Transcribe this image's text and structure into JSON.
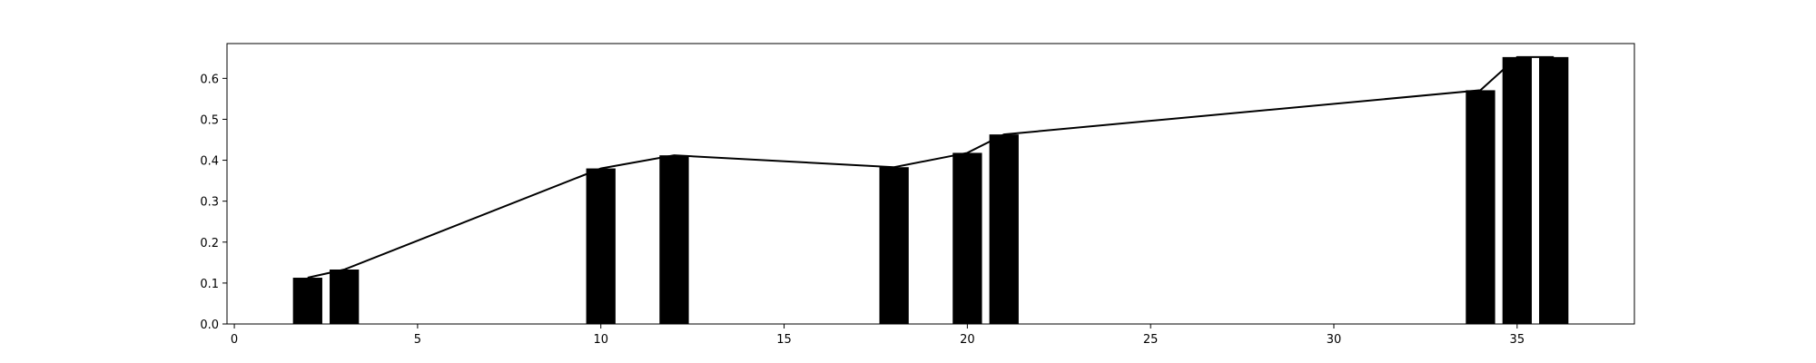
{
  "chart_data": {
    "type": "bar",
    "title": "",
    "xlabel": "",
    "ylabel": "",
    "xlim": [
      -0.2,
      38.2
    ],
    "ylim": [
      0,
      0.685
    ],
    "grid": false,
    "legend": "none",
    "bar_width": 0.8,
    "bar_color": "#000000",
    "line_color": "#000000",
    "x_ticks": [
      0,
      5,
      10,
      15,
      20,
      25,
      30,
      35
    ],
    "x_tick_labels": [
      "0",
      "5",
      "10",
      "15",
      "20",
      "25",
      "30",
      "35"
    ],
    "y_ticks": [
      0.0,
      0.1,
      0.2,
      0.3,
      0.4,
      0.5,
      0.6
    ],
    "y_tick_labels": [
      "0.0",
      "0.1",
      "0.2",
      "0.3",
      "0.4",
      "0.5",
      "0.6"
    ],
    "x": [
      2,
      3,
      10,
      12,
      18,
      20,
      21,
      34,
      35,
      36
    ],
    "series": [
      {
        "type": "bar",
        "values": [
          0.113,
          0.133,
          0.38,
          0.412,
          0.383,
          0.418,
          0.463,
          0.571,
          0.652,
          0.652
        ]
      },
      {
        "type": "line",
        "values": [
          0.113,
          0.133,
          0.38,
          0.412,
          0.383,
          0.418,
          0.463,
          0.571,
          0.652,
          0.652
        ]
      }
    ]
  }
}
